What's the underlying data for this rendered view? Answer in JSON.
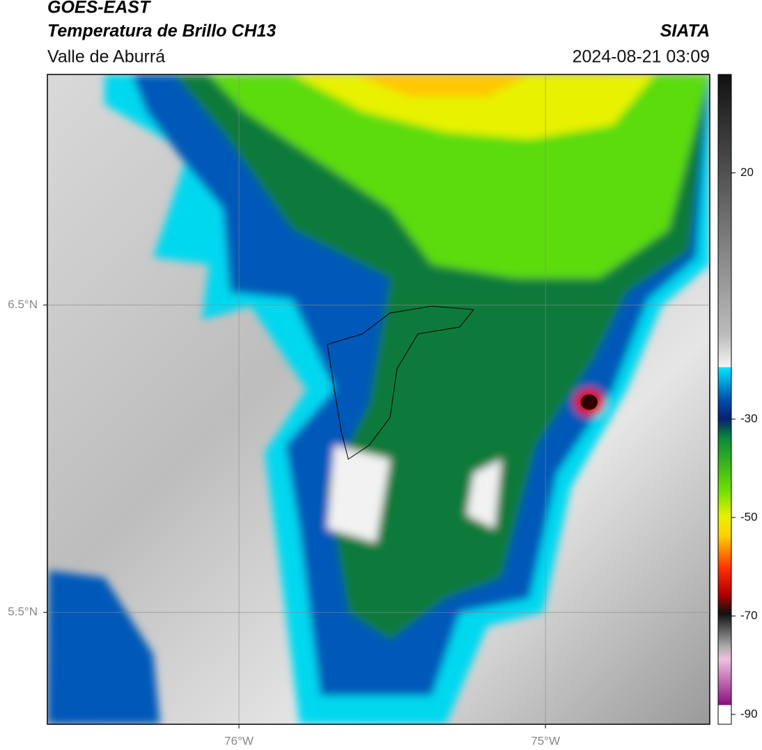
{
  "header": {
    "title": "GOES-EAST",
    "subtitle": "Temperatura de Brillo CH13",
    "region": "Valle de Aburrá",
    "source": "SIATA",
    "timestamp": "2024-08-21 03:09"
  },
  "map": {
    "xlim": [
      -76.625,
      -74.464
    ],
    "ylim": [
      5.136,
      7.25
    ],
    "xticks": [
      {
        "value": -76,
        "label": "76°W"
      },
      {
        "value": -75,
        "label": "75°W"
      }
    ],
    "yticks": [
      {
        "value": 6.5,
        "label": "6.5°N"
      },
      {
        "value": 5.5,
        "label": "5.5°N"
      }
    ],
    "grid": true
  },
  "colorbar": {
    "lim": [
      -92,
      40
    ],
    "ticks": [
      20,
      -30,
      -50,
      -70,
      -90
    ]
  }
}
